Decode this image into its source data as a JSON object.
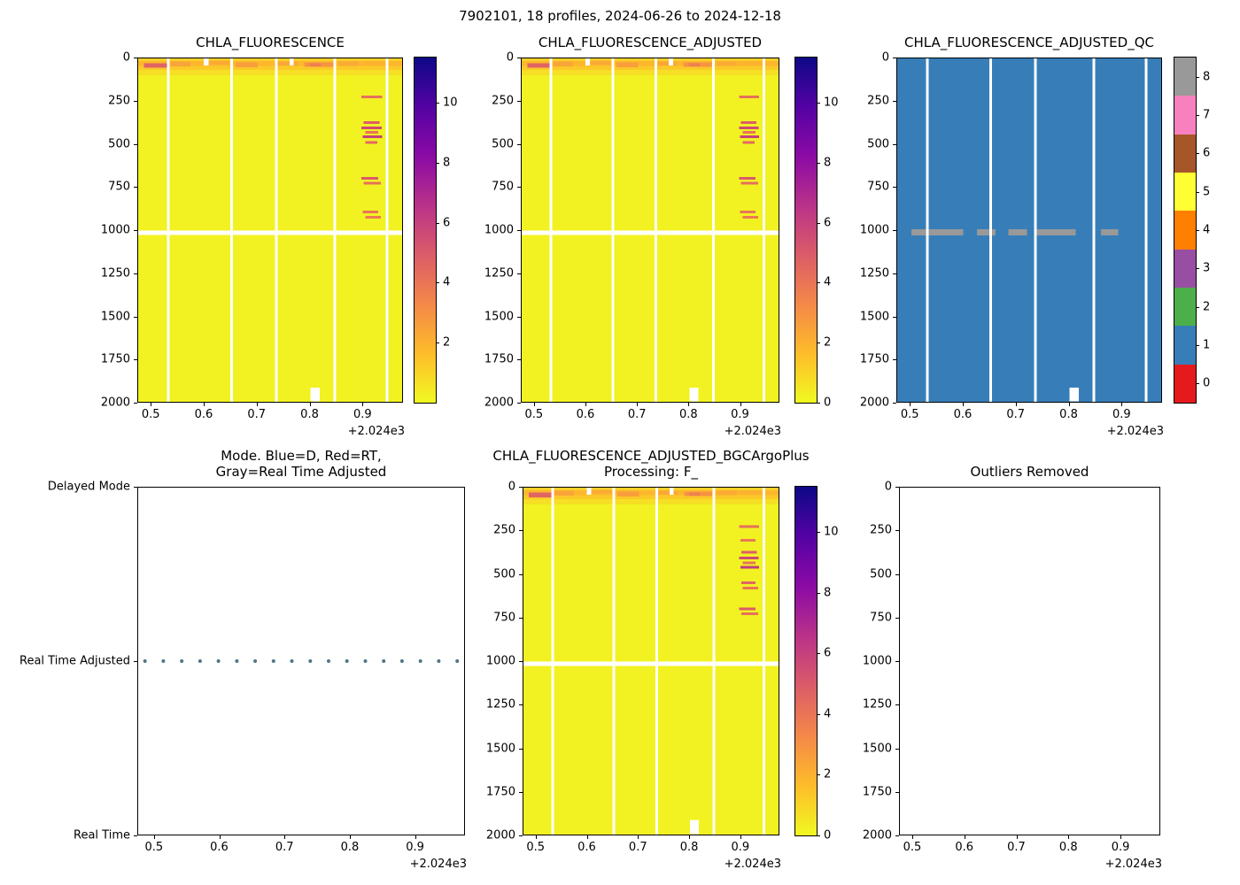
{
  "figure": {
    "title": "7902101, 18 profiles, 2024-06-26 to 2024-12-18",
    "platform_id": "7902101",
    "n_profiles": 18,
    "date_start": "2024-06-26",
    "date_end": "2024-12-18"
  },
  "colors": {
    "plasma_stops": [
      "#0d0887",
      "#5402a3",
      "#8b0aa5",
      "#b93289",
      "#db5c68",
      "#f48849",
      "#febc2a",
      "#f0f921"
    ],
    "qc_palette": [
      "#e41a1c",
      "#377eb8",
      "#4daf4a",
      "#984ea3",
      "#ff7f00",
      "#ffff33",
      "#a65628",
      "#f781bf",
      "#999999"
    ],
    "mode_dot": "#4f7585",
    "missing_data": "#ffffff"
  },
  "chart_data": [
    {
      "type": "heatmap",
      "title": "CHLA_FLUORESCENCE",
      "colormap": "plasma_r",
      "x_range": [
        0.4745,
        0.9765
      ],
      "y_range": [
        0,
        2000
      ],
      "y_down": true,
      "x_tick_values": [
        0.5,
        0.6,
        0.7,
        0.8,
        0.9
      ],
      "x_tick_labels": [
        "0.5",
        "0.6",
        "0.7",
        "0.8",
        "0.9"
      ],
      "x_offset_label": "+2.024e3",
      "y_tick_values": [
        0,
        250,
        500,
        750,
        1000,
        1250,
        1500,
        1750,
        2000
      ],
      "y_tick_labels": [
        "0",
        "250",
        "500",
        "750",
        "1000",
        "1250",
        "1500",
        "1750",
        "2000"
      ],
      "vmin": 0,
      "vmax": 11.5,
      "background_value": 0.2,
      "surface_bands": [
        {
          "x0": 0.4745,
          "x1": 0.9765,
          "d0": 0,
          "d1": 20,
          "value": 1.1
        },
        {
          "x0": 0.4745,
          "x1": 0.9765,
          "d0": 20,
          "d1": 48,
          "value": 1.8
        },
        {
          "x0": 0.4745,
          "x1": 0.9765,
          "d0": 48,
          "d1": 72,
          "value": 1.3
        },
        {
          "x0": 0.4745,
          "x1": 0.9765,
          "d0": 72,
          "d1": 102,
          "value": 0.7
        },
        {
          "x0": 0.487,
          "x1": 0.533,
          "d0": 34,
          "d1": 60,
          "value": 4.6
        },
        {
          "x0": 0.537,
          "x1": 0.575,
          "d0": 24,
          "d1": 50,
          "value": 2.4
        },
        {
          "x0": 0.61,
          "x1": 0.648,
          "d0": 18,
          "d1": 42,
          "value": 2.2
        },
        {
          "x0": 0.66,
          "x1": 0.702,
          "d0": 28,
          "d1": 55,
          "value": 2.6
        },
        {
          "x0": 0.74,
          "x1": 0.778,
          "d0": 22,
          "d1": 46,
          "value": 2.3
        },
        {
          "x0": 0.79,
          "x1": 0.845,
          "d0": 28,
          "d1": 54,
          "value": 2.9
        },
        {
          "x0": 0.8,
          "x1": 0.822,
          "d0": 34,
          "d1": 52,
          "value": 3.6
        },
        {
          "x0": 0.855,
          "x1": 0.893,
          "d0": 24,
          "d1": 48,
          "value": 2.2
        },
        {
          "x0": 0.9,
          "x1": 0.94,
          "d0": 20,
          "d1": 44,
          "value": 2.0
        }
      ],
      "streaks": [
        {
          "x0": 0.898,
          "x1": 0.937,
          "d": 228,
          "value": 4.2
        },
        {
          "x0": 0.902,
          "x1": 0.932,
          "d": 376,
          "value": 4.8
        },
        {
          "x0": 0.898,
          "x1": 0.936,
          "d": 408,
          "value": 5.6
        },
        {
          "x0": 0.905,
          "x1": 0.93,
          "d": 434,
          "value": 4.0
        },
        {
          "x0": 0.9,
          "x1": 0.937,
          "d": 458,
          "value": 6.0
        },
        {
          "x0": 0.905,
          "x1": 0.928,
          "d": 492,
          "value": 4.4
        },
        {
          "x0": 0.898,
          "x1": 0.93,
          "d": 700,
          "value": 5.0
        },
        {
          "x0": 0.902,
          "x1": 0.935,
          "d": 728,
          "value": 4.2
        },
        {
          "x0": 0.9,
          "x1": 0.93,
          "d": 896,
          "value": 4.0
        },
        {
          "x0": 0.905,
          "x1": 0.935,
          "d": 926,
          "value": 3.8
        }
      ],
      "white_line": {
        "d0": 1002,
        "d1": 1028
      },
      "top_gaps": [
        {
          "x0": 0.6,
          "x1": 0.609
        },
        {
          "x0": 0.762,
          "x1": 0.77
        }
      ],
      "missing_rects": [
        {
          "x0": 0.802,
          "x1": 0.819,
          "d0": 1912,
          "d1": 1992
        }
      ],
      "gaps_x": [
        0.533,
        0.653,
        0.737,
        0.848,
        0.946
      ],
      "colorbar": {
        "kind": "gradient",
        "vmin": 0,
        "vmax": 11.5,
        "ticks": [
          {
            "v": 2,
            "label": "2"
          },
          {
            "v": 4,
            "label": "4"
          },
          {
            "v": 6,
            "label": "6"
          },
          {
            "v": 8,
            "label": "8"
          },
          {
            "v": 10,
            "label": "10"
          }
        ]
      }
    },
    {
      "type": "heatmap",
      "title": "CHLA_FLUORESCENCE_ADJUSTED",
      "colormap": "plasma_r",
      "x_range": [
        0.4745,
        0.9765
      ],
      "y_range": [
        0,
        2000
      ],
      "y_down": true,
      "x_tick_values": [
        0.5,
        0.6,
        0.7,
        0.8,
        0.9
      ],
      "x_tick_labels": [
        "0.5",
        "0.6",
        "0.7",
        "0.8",
        "0.9"
      ],
      "x_offset_label": "+2.024e3",
      "y_tick_values": [
        0,
        250,
        500,
        750,
        1000,
        1250,
        1500,
        1750,
        2000
      ],
      "y_tick_labels": [
        "0",
        "250",
        "500",
        "750",
        "1000",
        "1250",
        "1500",
        "1750",
        "2000"
      ],
      "vmin": 0,
      "vmax": 11.5,
      "background_value": 0.2,
      "surface_bands": [
        {
          "x0": 0.4745,
          "x1": 0.9765,
          "d0": 0,
          "d1": 20,
          "value": 1.1
        },
        {
          "x0": 0.4745,
          "x1": 0.9765,
          "d0": 20,
          "d1": 48,
          "value": 1.8
        },
        {
          "x0": 0.4745,
          "x1": 0.9765,
          "d0": 48,
          "d1": 72,
          "value": 1.3
        },
        {
          "x0": 0.4745,
          "x1": 0.9765,
          "d0": 72,
          "d1": 102,
          "value": 0.7
        },
        {
          "x0": 0.487,
          "x1": 0.533,
          "d0": 34,
          "d1": 60,
          "value": 4.6
        },
        {
          "x0": 0.537,
          "x1": 0.575,
          "d0": 24,
          "d1": 50,
          "value": 2.4
        },
        {
          "x0": 0.61,
          "x1": 0.648,
          "d0": 18,
          "d1": 42,
          "value": 2.2
        },
        {
          "x0": 0.66,
          "x1": 0.702,
          "d0": 28,
          "d1": 55,
          "value": 2.6
        },
        {
          "x0": 0.74,
          "x1": 0.778,
          "d0": 22,
          "d1": 46,
          "value": 2.3
        },
        {
          "x0": 0.79,
          "x1": 0.845,
          "d0": 28,
          "d1": 54,
          "value": 2.9
        },
        {
          "x0": 0.8,
          "x1": 0.822,
          "d0": 34,
          "d1": 52,
          "value": 3.6
        },
        {
          "x0": 0.855,
          "x1": 0.893,
          "d0": 24,
          "d1": 48,
          "value": 2.2
        },
        {
          "x0": 0.9,
          "x1": 0.94,
          "d0": 20,
          "d1": 44,
          "value": 2.0
        }
      ],
      "streaks": [
        {
          "x0": 0.898,
          "x1": 0.937,
          "d": 228,
          "value": 4.2
        },
        {
          "x0": 0.902,
          "x1": 0.932,
          "d": 376,
          "value": 4.8
        },
        {
          "x0": 0.898,
          "x1": 0.936,
          "d": 408,
          "value": 5.6
        },
        {
          "x0": 0.905,
          "x1": 0.93,
          "d": 434,
          "value": 4.0
        },
        {
          "x0": 0.9,
          "x1": 0.937,
          "d": 458,
          "value": 6.0
        },
        {
          "x0": 0.905,
          "x1": 0.928,
          "d": 492,
          "value": 4.4
        },
        {
          "x0": 0.898,
          "x1": 0.93,
          "d": 700,
          "value": 5.0
        },
        {
          "x0": 0.902,
          "x1": 0.935,
          "d": 728,
          "value": 4.2
        },
        {
          "x0": 0.9,
          "x1": 0.93,
          "d": 896,
          "value": 4.0
        },
        {
          "x0": 0.905,
          "x1": 0.935,
          "d": 926,
          "value": 3.8
        }
      ],
      "white_line": {
        "d0": 1002,
        "d1": 1028
      },
      "top_gaps": [
        {
          "x0": 0.6,
          "x1": 0.609
        },
        {
          "x0": 0.762,
          "x1": 0.77
        }
      ],
      "missing_rects": [
        {
          "x0": 0.802,
          "x1": 0.819,
          "d0": 1912,
          "d1": 1992
        }
      ],
      "gaps_x": [
        0.533,
        0.653,
        0.737,
        0.848,
        0.946
      ],
      "colorbar": {
        "kind": "gradient",
        "vmin": 0,
        "vmax": 11.5,
        "ticks": [
          {
            "v": 0,
            "label": "0"
          },
          {
            "v": 2,
            "label": "2"
          },
          {
            "v": 4,
            "label": "4"
          },
          {
            "v": 6,
            "label": "6"
          },
          {
            "v": 8,
            "label": "8"
          },
          {
            "v": 10,
            "label": "10"
          }
        ]
      }
    },
    {
      "type": "qc_heatmap",
      "title": "CHLA_FLUORESCENCE_ADJUSTED_QC",
      "x_range": [
        0.4745,
        0.9765
      ],
      "y_range": [
        0,
        2000
      ],
      "y_down": true,
      "x_tick_values": [
        0.5,
        0.6,
        0.7,
        0.8,
        0.9
      ],
      "x_tick_labels": [
        "0.5",
        "0.6",
        "0.7",
        "0.8",
        "0.9"
      ],
      "x_offset_label": "+2.024e3",
      "y_tick_values": [
        0,
        250,
        500,
        750,
        1000,
        1250,
        1500,
        1750,
        2000
      ],
      "y_tick_labels": [
        "0",
        "250",
        "500",
        "750",
        "1000",
        "1250",
        "1500",
        "1750",
        "2000"
      ],
      "fill_value": 1,
      "gray_dashes": {
        "value": 8,
        "d0": 994,
        "d1": 1032,
        "segments": [
          [
            0.503,
            0.601
          ],
          [
            0.627,
            0.662
          ],
          [
            0.686,
            0.721
          ],
          [
            0.739,
            0.813
          ],
          [
            0.861,
            0.894
          ]
        ]
      },
      "missing_rects": [
        {
          "x0": 0.802,
          "x1": 0.819,
          "d0": 1912,
          "d1": 1992
        }
      ],
      "gaps_x": [
        0.533,
        0.653,
        0.737,
        0.848,
        0.946
      ],
      "colorbar": {
        "kind": "discrete",
        "cell_values": [
          0,
          1,
          2,
          3,
          4,
          5,
          6,
          7,
          8
        ],
        "ticks": [
          {
            "v": 0,
            "label": "0"
          },
          {
            "v": 1,
            "label": "1"
          },
          {
            "v": 2,
            "label": "2"
          },
          {
            "v": 3,
            "label": "3"
          },
          {
            "v": 4,
            "label": "4"
          },
          {
            "v": 5,
            "label": "5"
          },
          {
            "v": 6,
            "label": "6"
          },
          {
            "v": 7,
            "label": "7"
          },
          {
            "v": 8,
            "label": "8"
          }
        ]
      }
    },
    {
      "type": "scatter",
      "title": "Mode. Blue=D, Red=RT,\nGray=Real Time Adjusted",
      "x_range": [
        0.4745,
        0.9765
      ],
      "y_range": [
        0,
        2
      ],
      "y_down": false,
      "x_tick_values": [
        0.5,
        0.6,
        0.7,
        0.8,
        0.9
      ],
      "x_tick_labels": [
        "0.5",
        "0.6",
        "0.7",
        "0.8",
        "0.9"
      ],
      "x_offset_label": "+2.024e3",
      "y_tick_values": [
        0,
        1,
        2
      ],
      "y_tick_labels": [
        "Real Time",
        "Real Time Adjusted",
        "Delayed Mode"
      ],
      "points_x": [
        0.4863,
        0.5144,
        0.5426,
        0.5707,
        0.5988,
        0.627,
        0.6551,
        0.6832,
        0.7113,
        0.7395,
        0.7676,
        0.7957,
        0.8239,
        0.852,
        0.8801,
        0.9082,
        0.9364,
        0.9645
      ],
      "points_y_value": 1
    },
    {
      "type": "heatmap",
      "title": "CHLA_FLUORESCENCE_ADJUSTED_BGCArgoPlus\nProcessing: F_",
      "colormap": "plasma_r",
      "x_range": [
        0.4745,
        0.9765
      ],
      "y_range": [
        0,
        2000
      ],
      "y_down": true,
      "x_tick_values": [
        0.5,
        0.6,
        0.7,
        0.8,
        0.9
      ],
      "x_tick_labels": [
        "0.5",
        "0.6",
        "0.7",
        "0.8",
        "0.9"
      ],
      "x_offset_label": "+2.024e3",
      "y_tick_values": [
        0,
        250,
        500,
        750,
        1000,
        1250,
        1500,
        1750,
        2000
      ],
      "y_tick_labels": [
        "0",
        "250",
        "500",
        "750",
        "1000",
        "1250",
        "1500",
        "1750",
        "2000"
      ],
      "vmin": 0,
      "vmax": 11.5,
      "background_value": 0.2,
      "surface_bands": [
        {
          "x0": 0.4745,
          "x1": 0.9765,
          "d0": 0,
          "d1": 20,
          "value": 1.1
        },
        {
          "x0": 0.4745,
          "x1": 0.9765,
          "d0": 20,
          "d1": 48,
          "value": 1.8
        },
        {
          "x0": 0.4745,
          "x1": 0.9765,
          "d0": 48,
          "d1": 72,
          "value": 1.3
        },
        {
          "x0": 0.4745,
          "x1": 0.9765,
          "d0": 72,
          "d1": 102,
          "value": 0.7
        },
        {
          "x0": 0.487,
          "x1": 0.533,
          "d0": 34,
          "d1": 60,
          "value": 4.6
        },
        {
          "x0": 0.537,
          "x1": 0.575,
          "d0": 24,
          "d1": 50,
          "value": 2.4
        },
        {
          "x0": 0.61,
          "x1": 0.648,
          "d0": 18,
          "d1": 42,
          "value": 2.2
        },
        {
          "x0": 0.66,
          "x1": 0.702,
          "d0": 28,
          "d1": 55,
          "value": 2.6
        },
        {
          "x0": 0.74,
          "x1": 0.778,
          "d0": 22,
          "d1": 46,
          "value": 2.3
        },
        {
          "x0": 0.79,
          "x1": 0.845,
          "d0": 28,
          "d1": 54,
          "value": 2.9
        },
        {
          "x0": 0.8,
          "x1": 0.822,
          "d0": 34,
          "d1": 52,
          "value": 3.6
        },
        {
          "x0": 0.855,
          "x1": 0.893,
          "d0": 24,
          "d1": 48,
          "value": 2.2
        },
        {
          "x0": 0.9,
          "x1": 0.94,
          "d0": 20,
          "d1": 44,
          "value": 2.0
        }
      ],
      "streaks": [
        {
          "x0": 0.898,
          "x1": 0.937,
          "d": 228,
          "value": 4.2
        },
        {
          "x0": 0.9,
          "x1": 0.93,
          "d": 308,
          "value": 3.8
        },
        {
          "x0": 0.902,
          "x1": 0.932,
          "d": 376,
          "value": 4.8
        },
        {
          "x0": 0.898,
          "x1": 0.936,
          "d": 408,
          "value": 5.6
        },
        {
          "x0": 0.905,
          "x1": 0.93,
          "d": 436,
          "value": 4.0
        },
        {
          "x0": 0.9,
          "x1": 0.937,
          "d": 462,
          "value": 6.2
        },
        {
          "x0": 0.902,
          "x1": 0.93,
          "d": 552,
          "value": 4.6
        },
        {
          "x0": 0.905,
          "x1": 0.935,
          "d": 582,
          "value": 4.0
        },
        {
          "x0": 0.898,
          "x1": 0.93,
          "d": 700,
          "value": 5.0
        },
        {
          "x0": 0.902,
          "x1": 0.935,
          "d": 728,
          "value": 4.2
        }
      ],
      "white_line": {
        "d0": 1002,
        "d1": 1028
      },
      "top_gaps": [
        {
          "x0": 0.6,
          "x1": 0.609
        },
        {
          "x0": 0.762,
          "x1": 0.77
        }
      ],
      "missing_rects": [
        {
          "x0": 0.802,
          "x1": 0.819,
          "d0": 1912,
          "d1": 1992
        }
      ],
      "gaps_x": [
        0.533,
        0.653,
        0.737,
        0.848,
        0.946
      ],
      "colorbar": {
        "kind": "gradient",
        "vmin": 0,
        "vmax": 11.5,
        "ticks": [
          {
            "v": 0,
            "label": "0"
          },
          {
            "v": 2,
            "label": "2"
          },
          {
            "v": 4,
            "label": "4"
          },
          {
            "v": 6,
            "label": "6"
          },
          {
            "v": 8,
            "label": "8"
          },
          {
            "v": 10,
            "label": "10"
          }
        ]
      }
    },
    {
      "type": "empty",
      "title": "Outliers Removed",
      "x_range": [
        0.4745,
        0.9765
      ],
      "y_range": [
        0,
        2000
      ],
      "y_down": true,
      "x_tick_values": [
        0.5,
        0.6,
        0.7,
        0.8,
        0.9
      ],
      "x_tick_labels": [
        "0.5",
        "0.6",
        "0.7",
        "0.8",
        "0.9"
      ],
      "x_offset_label": "+2.024e3",
      "y_tick_values": [
        0,
        250,
        500,
        750,
        1000,
        1250,
        1500,
        1750,
        2000
      ],
      "y_tick_labels": [
        "0",
        "250",
        "500",
        "750",
        "1000",
        "1250",
        "1500",
        "1750",
        "2000"
      ]
    }
  ]
}
